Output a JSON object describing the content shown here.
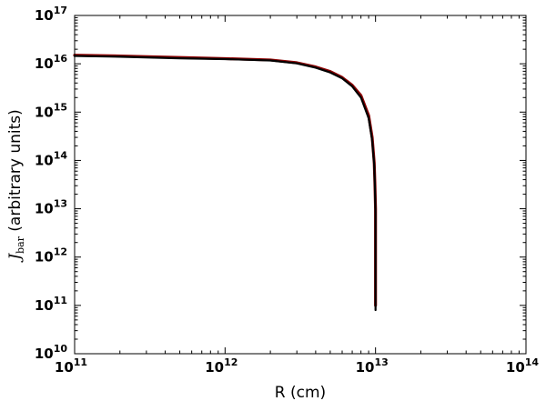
{
  "chart_data": {
    "type": "line",
    "xlabel": "R (cm)",
    "ylabel_symbol": "J",
    "ylabel_sub": "bar",
    "ylabel_rest": " (arbitrary units)",
    "xscale": "log",
    "yscale": "log",
    "xlim": [
      100000000000.0,
      100000000000000.0
    ],
    "ylim": [
      10000000000.0,
      1e+17
    ],
    "grid": false,
    "xticks": [
      {
        "base": "10",
        "exp": "11",
        "value": 100000000000.0
      },
      {
        "base": "10",
        "exp": "12",
        "value": 1000000000000.0
      },
      {
        "base": "10",
        "exp": "13",
        "value": 10000000000000.0
      },
      {
        "base": "10",
        "exp": "14",
        "value": 100000000000000.0
      }
    ],
    "yticks": [
      {
        "base": "10",
        "exp": "10",
        "value": 10000000000.0
      },
      {
        "base": "10",
        "exp": "11",
        "value": 100000000000.0
      },
      {
        "base": "10",
        "exp": "12",
        "value": 1000000000000.0
      },
      {
        "base": "10",
        "exp": "13",
        "value": 10000000000000.0
      },
      {
        "base": "10",
        "exp": "14",
        "value": 100000000000000.0
      },
      {
        "base": "10",
        "exp": "15",
        "value": 1000000000000000.0
      },
      {
        "base": "10",
        "exp": "16",
        "value": 1e+16
      },
      {
        "base": "10",
        "exp": "17",
        "value": 1e+17
      }
    ],
    "series": [
      {
        "color": "#8b0000",
        "x": [
          100000000000.0,
          200000000000.0,
          500000000000.0,
          1000000000000.0,
          2000000000000.0,
          3000000000000.0,
          4000000000000.0,
          5000000000000.0,
          6000000000000.0,
          7000000000000.0,
          8000000000000.0,
          9000000000000.0,
          9500000000000.0,
          9800000000000.0,
          9900000000000.0,
          10000000000000.0,
          10000000000000.0,
          10000000000000.0
        ],
        "y": [
          1.5e+16,
          1.45e+16,
          1.35e+16,
          1.28e+16,
          1.2e+16,
          1.05e+16,
          8600000000000000.0,
          6900000000000000.0,
          5200000000000000.0,
          3600000000000000.0,
          2200000000000000.0,
          850000000000000.0,
          300000000000000.0,
          90000000000000.0,
          35000000000000.0,
          10000000000000.0,
          1000000000000.0,
          100000000000.0
        ]
      },
      {
        "color": "#000000",
        "x": [
          100000000000.0,
          200000000000.0,
          500000000000.0,
          1000000000000.0,
          2000000000000.0,
          3000000000000.0,
          4000000000000.0,
          5000000000000.0,
          6000000000000.0,
          7000000000000.0,
          8000000000000.0,
          9000000000000.0,
          9500000000000.0,
          9800000000000.0,
          9900000000000.0,
          10000000000000.0,
          10000000000000.0,
          10000000000000.0
        ],
        "y": [
          1.45e+16,
          1.4e+16,
          1.3e+16,
          1.25e+16,
          1.17e+16,
          1.02e+16,
          8300000000000000.0,
          6600000000000000.0,
          5000000000000000.0,
          3400000000000000.0,
          2000000000000000.0,
          750000000000000.0,
          260000000000000.0,
          80000000000000.0,
          30000000000000.0,
          8000000000000.0,
          800000000000.0,
          80000000000.0
        ]
      }
    ]
  }
}
